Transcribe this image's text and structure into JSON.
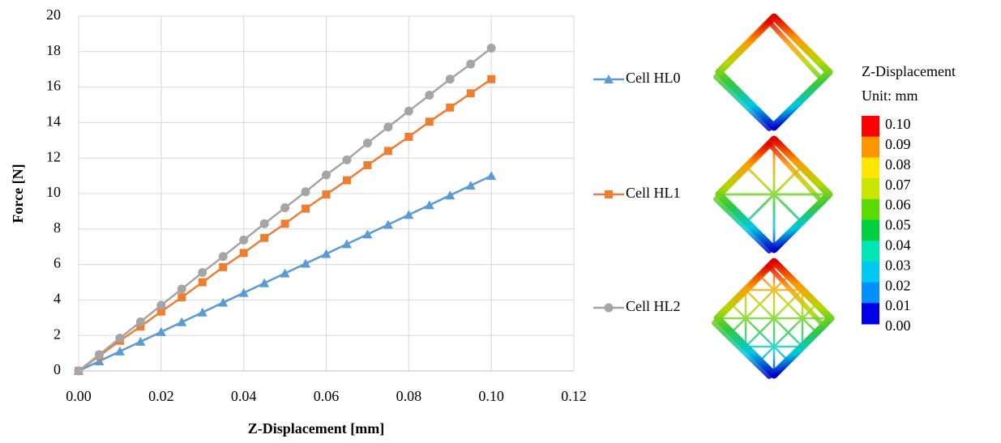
{
  "chart_data": {
    "type": "line",
    "x_label": "Z-Displacement [mm]",
    "y_label": "Force [N]",
    "x": [
      0,
      0.005,
      0.01,
      0.015,
      0.02,
      0.025,
      0.03,
      0.035,
      0.04,
      0.045,
      0.05,
      0.055,
      0.06,
      0.065,
      0.07,
      0.075,
      0.08,
      0.085,
      0.09,
      0.095,
      0.1
    ],
    "series": [
      {
        "name": "Cell HL0",
        "color": "#5b9bd5",
        "marker": "triangle",
        "values": [
          0,
          0.55,
          1.1,
          1.65,
          2.2,
          2.75,
          3.3,
          3.85,
          4.4,
          4.95,
          5.5,
          6.05,
          6.6,
          7.15,
          7.7,
          8.25,
          8.8,
          9.35,
          9.9,
          10.45,
          11.0
        ]
      },
      {
        "name": "Cell HL1",
        "color": "#ed7d31",
        "marker": "square",
        "values": [
          0,
          0.85,
          1.7,
          2.5,
          3.35,
          4.15,
          5.0,
          5.85,
          6.65,
          7.5,
          8.3,
          9.15,
          9.95,
          10.75,
          11.6,
          12.4,
          13.2,
          14.05,
          14.85,
          15.65,
          16.45
        ]
      },
      {
        "name": "Cell HL2",
        "color": "#a5a5a5",
        "marker": "circle",
        "values": [
          0,
          0.92,
          1.85,
          2.77,
          3.7,
          4.62,
          5.55,
          6.45,
          7.38,
          8.3,
          9.2,
          10.1,
          11.05,
          11.9,
          12.85,
          13.75,
          14.65,
          15.55,
          16.45,
          17.3,
          18.2
        ]
      }
    ],
    "xlim": [
      0,
      0.12
    ],
    "xticks": [
      {
        "value": 0,
        "label": "0.00"
      },
      {
        "value": 0.02,
        "label": "0.02"
      },
      {
        "value": 0.04,
        "label": "0.04"
      },
      {
        "value": 0.06,
        "label": "0.06"
      },
      {
        "value": 0.08,
        "label": "0.08"
      },
      {
        "value": 0.1,
        "label": "0.10"
      },
      {
        "value": 0.12,
        "label": "0.12"
      }
    ],
    "ylim": [
      0,
      20
    ],
    "yticks": [
      0,
      2,
      4,
      6,
      8,
      10,
      12,
      14,
      16,
      18,
      20
    ],
    "grid": true,
    "legend": "right",
    "colorbar": {
      "title": "Z-Displacement",
      "unit": "Unit: mm",
      "ticks": [
        {
          "value": 0.1,
          "label": "0.10"
        },
        {
          "value": 0.09,
          "label": "0.09"
        },
        {
          "value": 0.08,
          "label": "0.08"
        },
        {
          "value": 0.07,
          "label": "0.07"
        },
        {
          "value": 0.06,
          "label": "0.06"
        },
        {
          "value": 0.05,
          "label": "0.05"
        },
        {
          "value": 0.04,
          "label": "0.04"
        },
        {
          "value": 0.03,
          "label": "0.03"
        },
        {
          "value": 0.02,
          "label": "0.02"
        },
        {
          "value": 0.01,
          "label": "0.01"
        },
        {
          "value": 0,
          "label": "0.00"
        }
      ],
      "colors": [
        "#ff0000",
        "#ff9600",
        "#ffe600",
        "#c8e600",
        "#5adc00",
        "#00d040",
        "#00e6b4",
        "#00c8f0",
        "#0090ff",
        "#0000e6"
      ]
    }
  }
}
